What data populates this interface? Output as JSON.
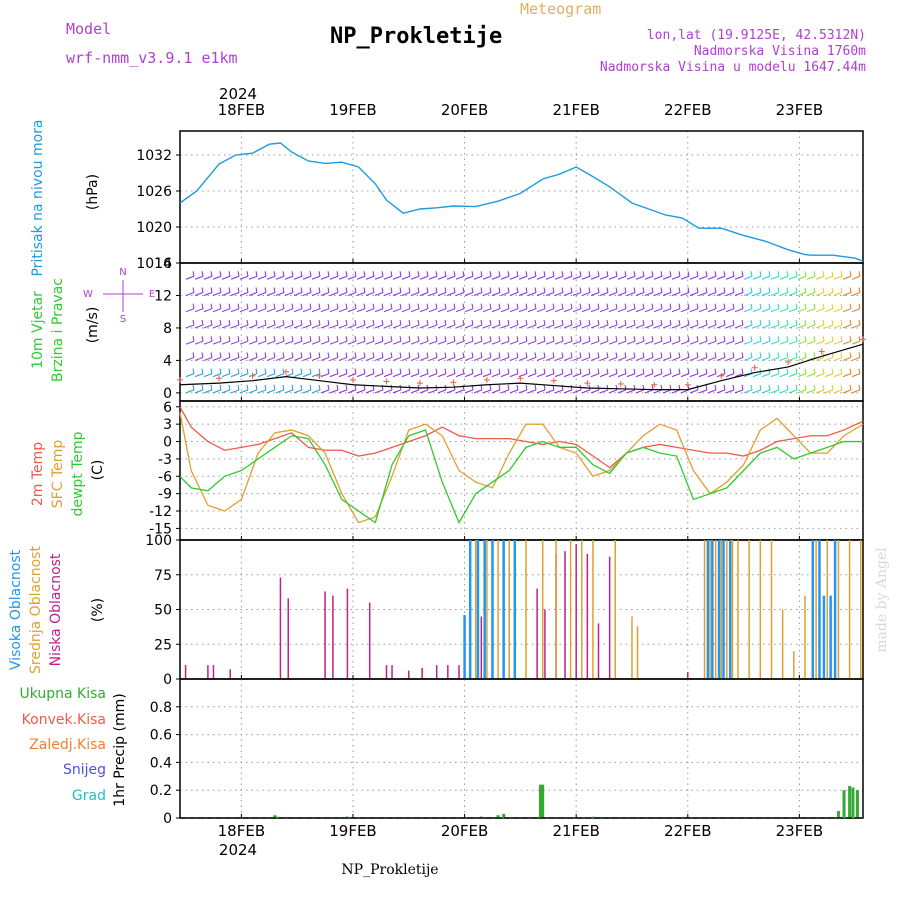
{
  "header": {
    "model_label": "Model",
    "model_name": "wrf-nmm_v3.9.1  e1km",
    "title": "NP_Prokletije",
    "meteogram_label": "Meteogram",
    "coords": "lon,lat (19.9125E, 42.5312N)",
    "elevation": "Nadmorska Visina 1760m",
    "model_elevation": "Nadmorska Visina u modelu 1647.44m",
    "footer": "NP_Prokletije",
    "credit": "made by Angel"
  },
  "time_axis": {
    "year": "2024",
    "days": [
      "18FEB",
      "19FEB",
      "20FEB",
      "21FEB",
      "22FEB",
      "23FEB"
    ],
    "start_day_offset": -0.55,
    "end_day_offset": 5.57
  },
  "panel_labels": {
    "pressure": {
      "title": "Pritisak na nivou mora",
      "unit": "(hPa)"
    },
    "wind": {
      "title1": "10m Vjetar",
      "title2": "Brzina i Pravac",
      "unit": "(m/s)",
      "compass": [
        "N",
        "E",
        "S",
        "W"
      ]
    },
    "temp": {
      "title1": "2m Temp",
      "title2": "SFC Temp",
      "title3": "dewpt Temp",
      "unit": "(C)"
    },
    "cloud": {
      "title1": "Visoka Oblacnost",
      "title2": "Srednja Oblacnost",
      "title3": "Niska Oblacnost",
      "unit": "(%)"
    },
    "precip": {
      "legend": [
        "Ukupna Kisa",
        "Konvek.Kisa",
        "Zaledj.Kisa",
        "Snijeg",
        "Grad"
      ],
      "unit": "1hr Precip (mm)"
    }
  },
  "colors": {
    "pressure": "#1e9be0",
    "wind_barb": "#8a2be2",
    "temp2m": "#f05a4a",
    "sfc": "#e0a030",
    "dewpt": "#2fcc2f",
    "high_cloud": "#2196f3",
    "mid_cloud": "#e0a030",
    "low_cloud": "#c0208a",
    "total_rain": "#33aa33",
    "title": "#000000",
    "model": "#b040d0",
    "meteogram": "#e0b060"
  },
  "chart_data": [
    {
      "type": "line",
      "name": "pressure",
      "ylim": [
        1014,
        1036
      ],
      "yticks": [
        1014,
        1020,
        1026,
        1032
      ],
      "x": [
        -0.55,
        -0.4,
        -0.2,
        -0.05,
        0.1,
        0.25,
        0.35,
        0.45,
        0.6,
        0.75,
        0.9,
        1.05,
        1.2,
        1.3,
        1.45,
        1.6,
        1.75,
        1.9,
        2.1,
        2.3,
        2.5,
        2.7,
        2.85,
        3.0,
        3.15,
        3.3,
        3.5,
        3.65,
        3.8,
        3.95,
        4.1,
        4.3,
        4.5,
        4.7,
        4.9,
        5.05,
        5.1,
        5.3,
        5.5,
        5.57
      ],
      "y": [
        1024,
        1026,
        1030.5,
        1032,
        1032.3,
        1033.8,
        1034,
        1032.5,
        1031,
        1030.6,
        1030.8,
        1030,
        1027.2,
        1024.5,
        1022.3,
        1023,
        1023.2,
        1023.5,
        1023.4,
        1024.3,
        1025.6,
        1028,
        1028.8,
        1030,
        1028.4,
        1026.7,
        1024,
        1023,
        1022,
        1021.5,
        1019.8,
        1019.8,
        1018.6,
        1017.6,
        1016.2,
        1015.4,
        1015.3,
        1015.3,
        1014.8,
        1014.3
      ]
    },
    {
      "type": "line",
      "name": "wind_speed",
      "ylim": [
        -1,
        16
      ],
      "yticks": [
        0,
        4,
        8,
        12,
        16
      ],
      "x": [
        -0.55,
        -0.2,
        0.1,
        0.4,
        0.7,
        1.0,
        1.3,
        1.6,
        1.9,
        2.2,
        2.5,
        2.8,
        3.1,
        3.4,
        3.7,
        4.0,
        4.3,
        4.6,
        4.9,
        5.2,
        5.57
      ],
      "y": [
        1.0,
        1.2,
        1.5,
        2.0,
        1.5,
        1.0,
        0.8,
        0.6,
        0.7,
        1.0,
        1.2,
        0.9,
        0.6,
        0.5,
        0.4,
        0.4,
        1.5,
        2.5,
        3.2,
        4.5,
        6.0
      ]
    },
    {
      "type": "line",
      "x": [
        -0.55,
        -0.45,
        -0.3,
        -0.15,
        0.0,
        0.15,
        0.3,
        0.45,
        0.6,
        0.75,
        0.9,
        1.05,
        1.2,
        1.35,
        1.5,
        1.65,
        1.8,
        1.95,
        2.1,
        2.25,
        2.4,
        2.55,
        2.7,
        2.85,
        3.0,
        3.15,
        3.3,
        3.45,
        3.6,
        3.75,
        3.9,
        4.05,
        4.2,
        4.35,
        4.5,
        4.65,
        4.8,
        4.95,
        5.1,
        5.25,
        5.4,
        5.57
      ],
      "ylim": [
        -17,
        7
      ],
      "yticks": [
        -15,
        -12,
        -9,
        -6,
        -3,
        0,
        3,
        6
      ],
      "series": [
        {
          "name": "2m Temp",
          "values": [
            6,
            2.5,
            0,
            -1.5,
            -1,
            -0.5,
            0.5,
            1.5,
            -1,
            -1.5,
            -1.5,
            -2.5,
            -2,
            -1,
            0,
            1,
            2.5,
            1,
            0.5,
            0.5,
            0.5,
            0,
            -0.5,
            0,
            -0.5,
            -2.5,
            -4.5,
            -2,
            -1,
            -0.5,
            -1,
            -1.5,
            -2,
            -2,
            -2.5,
            -1.5,
            0,
            0.5,
            1,
            1,
            2,
            3.5
          ]
        },
        {
          "name": "SFC Temp",
          "values": [
            5,
            -5,
            -11,
            -12,
            -10,
            -2,
            1.5,
            2,
            1,
            -2,
            -9,
            -14,
            -13,
            -6,
            2,
            3,
            1,
            -5,
            -7,
            -8,
            -2,
            3,
            3,
            -1,
            -2,
            -6,
            -5,
            -2,
            1,
            3,
            2,
            -5,
            -9,
            -7,
            -4,
            2,
            4,
            1,
            -2,
            -2,
            1,
            3
          ]
        },
        {
          "name": "dewpt Temp",
          "values": [
            -6,
            -8,
            -8.5,
            -6,
            -5,
            -3,
            -1,
            1,
            0.5,
            -4,
            -10,
            -12,
            -14,
            -4,
            1,
            2,
            -7,
            -14,
            -9,
            -7,
            -5,
            -1,
            0,
            -1,
            -1,
            -4,
            -5.5,
            -2,
            -1,
            -2,
            -2.5,
            -10,
            -9,
            -8,
            -5,
            -2,
            -1,
            -3,
            -2,
            -1,
            0,
            0
          ]
        }
      ]
    },
    {
      "type": "bar",
      "name": "cloud_cover",
      "ylim": [
        0,
        100
      ],
      "yticks": [
        0,
        25,
        50,
        75,
        100
      ],
      "series": [
        {
          "name": "Niska Oblacnost",
          "x": [
            -0.5,
            -0.3,
            -0.25,
            -0.1,
            0.35,
            0.42,
            0.75,
            0.82,
            0.95,
            1.15,
            1.3,
            1.35,
            1.5,
            1.62,
            1.75,
            1.85,
            1.95,
            2.15,
            2.4,
            2.65,
            2.72,
            2.82,
            2.9,
            3.0,
            3.1,
            3.2,
            3.3,
            4.0
          ],
          "values": [
            10,
            10,
            10,
            7,
            73,
            58,
            63,
            60,
            65,
            55,
            10,
            10,
            6,
            8,
            10,
            10,
            10,
            45,
            80,
            65,
            50,
            90,
            92,
            97,
            90,
            40,
            88,
            5
          ]
        },
        {
          "name": "Srednja Oblacnost",
          "x": [
            2.05,
            2.1,
            2.2,
            2.3,
            2.4,
            2.55,
            2.7,
            2.82,
            2.95,
            3.05,
            3.15,
            3.35,
            3.5,
            3.55,
            4.15,
            4.2,
            4.25,
            4.3,
            4.35,
            4.4,
            4.45,
            4.55,
            4.65,
            4.75,
            4.85,
            4.95,
            5.05,
            5.15,
            5.25,
            5.35,
            5.45,
            5.55
          ],
          "values": [
            100,
            100,
            100,
            100,
            100,
            100,
            100,
            100,
            100,
            100,
            100,
            100,
            45,
            38,
            100,
            100,
            100,
            100,
            100,
            100,
            100,
            100,
            100,
            100,
            50,
            20,
            60,
            100,
            100,
            100,
            100,
            100
          ]
        },
        {
          "name": "Visoka Oblacnost",
          "x": [
            2.0,
            2.05,
            2.12,
            2.18,
            2.25,
            2.35,
            2.45,
            4.18,
            4.22,
            4.28,
            4.32,
            4.38,
            5.12,
            5.18,
            5.22,
            5.28,
            5.32
          ],
          "values": [
            46,
            100,
            100,
            100,
            100,
            100,
            100,
            100,
            100,
            100,
            100,
            100,
            100,
            100,
            60,
            60,
            100
          ]
        }
      ]
    },
    {
      "type": "bar",
      "name": "precip",
      "ylim": [
        0,
        1.0
      ],
      "yticks": [
        0,
        0.2,
        0.4,
        0.6,
        0.8
      ],
      "x": [
        0.3,
        0.32,
        0.95,
        2.15,
        2.3,
        2.35,
        2.68,
        2.7,
        3.15,
        5.35,
        5.4,
        5.45,
        5.48,
        5.52
      ],
      "values": [
        0.02,
        0.01,
        0.01,
        0.01,
        0.02,
        0.03,
        0.24,
        0.24,
        0.01,
        0.05,
        0.2,
        0.23,
        0.22,
        0.2
      ]
    }
  ]
}
